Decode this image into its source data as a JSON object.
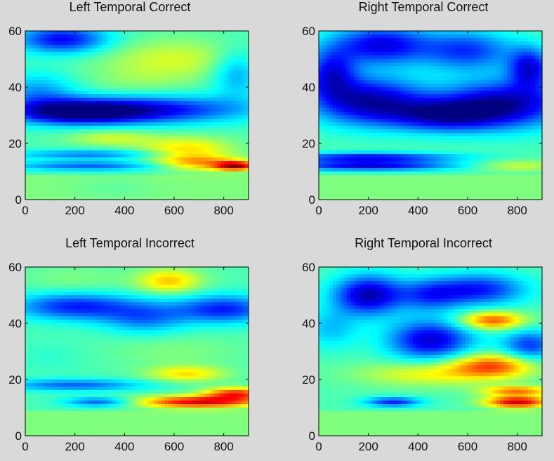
{
  "chart_data": [
    {
      "type": "heatmap",
      "title": "Left Temporal Correct",
      "xlim": [
        0,
        900
      ],
      "ylim": [
        0,
        60
      ],
      "xticks": [
        0,
        200,
        400,
        600,
        800
      ],
      "yticks": [
        0,
        20,
        40,
        60
      ],
      "colormap": "jet",
      "clim": [
        0,
        1
      ],
      "grid": false,
      "features": [
        {
          "x": 600,
          "y": 50,
          "value": 0.58,
          "sx": 200,
          "sy": 5
        },
        {
          "x": 150,
          "y": 57,
          "value": 0.12,
          "sx": 130,
          "sy": 3.5
        },
        {
          "x": 50,
          "y": 38,
          "value": 0.28,
          "sx": 110,
          "sy": 5
        },
        {
          "x": 500,
          "y": 32,
          "value": 0.12,
          "sx": 280,
          "sy": 3.5
        },
        {
          "x": 200,
          "y": 31,
          "value": 0.08,
          "sx": 180,
          "sy": 3
        },
        {
          "x": 450,
          "y": 42,
          "value": 0.5,
          "sx": 150,
          "sy": 4
        },
        {
          "x": 850,
          "y": 45,
          "value": 0.28,
          "sx": 70,
          "sy": 6
        },
        {
          "x": 350,
          "y": 22,
          "value": 0.58,
          "sx": 120,
          "sy": 2
        },
        {
          "x": 650,
          "y": 18,
          "value": 0.65,
          "sx": 130,
          "sy": 3
        },
        {
          "x": 250,
          "y": 16,
          "value": 0.25,
          "sx": 220,
          "sy": 1.2
        },
        {
          "x": 250,
          "y": 12,
          "value": 0.22,
          "sx": 230,
          "sy": 1.2
        },
        {
          "x": 850,
          "y": 12,
          "value": 0.9,
          "sx": 60,
          "sy": 1.2
        },
        {
          "x": 700,
          "y": 13,
          "value": 0.7,
          "sx": 120,
          "sy": 2
        },
        {
          "x": 350,
          "y": 4,
          "value": 0.42,
          "sx": 120,
          "sy": 3
        }
      ]
    },
    {
      "type": "heatmap",
      "title": "Right Temporal Correct",
      "xlim": [
        0,
        900
      ],
      "ylim": [
        0,
        60
      ],
      "xticks": [
        0,
        200,
        400,
        600,
        800
      ],
      "yticks": [
        0,
        20,
        40,
        60
      ],
      "colormap": "jet",
      "clim": [
        0,
        1
      ],
      "grid": false,
      "features": [
        {
          "x": 250,
          "y": 55,
          "value": 0.1,
          "sx": 140,
          "sy": 5
        },
        {
          "x": 600,
          "y": 53,
          "value": 0.18,
          "sx": 130,
          "sy": 5
        },
        {
          "x": 200,
          "y": 35,
          "value": 0.05,
          "sx": 160,
          "sy": 6
        },
        {
          "x": 750,
          "y": 34,
          "value": 0.05,
          "sx": 180,
          "sy": 6
        },
        {
          "x": 500,
          "y": 30,
          "value": 0.12,
          "sx": 150,
          "sy": 4
        },
        {
          "x": 450,
          "y": 42,
          "value": 0.45,
          "sx": 80,
          "sy": 4
        },
        {
          "x": 50,
          "y": 45,
          "value": 0.15,
          "sx": 70,
          "sy": 6
        },
        {
          "x": 850,
          "y": 47,
          "value": 0.12,
          "sx": 60,
          "sy": 5
        },
        {
          "x": 200,
          "y": 15,
          "value": 0.12,
          "sx": 250,
          "sy": 1.2
        },
        {
          "x": 200,
          "y": 12,
          "value": 0.1,
          "sx": 250,
          "sy": 1.2
        },
        {
          "x": 800,
          "y": 12,
          "value": 0.58,
          "sx": 130,
          "sy": 1.5
        }
      ]
    },
    {
      "type": "heatmap",
      "title": "Left Temporal Incorrect",
      "xlim": [
        0,
        900
      ],
      "ylim": [
        0,
        60
      ],
      "xticks": [
        0,
        200,
        400,
        600,
        800
      ],
      "yticks": [
        0,
        20,
        40,
        60
      ],
      "colormap": "jet",
      "clim": [
        0,
        1
      ],
      "grid": false,
      "features": [
        {
          "x": 580,
          "y": 55,
          "value": 0.68,
          "sx": 90,
          "sy": 3
        },
        {
          "x": 200,
          "y": 55,
          "value": 0.5,
          "sx": 150,
          "sy": 4
        },
        {
          "x": 200,
          "y": 46,
          "value": 0.15,
          "sx": 170,
          "sy": 3.5
        },
        {
          "x": 800,
          "y": 45,
          "value": 0.15,
          "sx": 140,
          "sy": 3.5
        },
        {
          "x": 480,
          "y": 42,
          "value": 0.25,
          "sx": 120,
          "sy": 4
        },
        {
          "x": 600,
          "y": 30,
          "value": 0.5,
          "sx": 180,
          "sy": 4
        },
        {
          "x": 650,
          "y": 22,
          "value": 0.65,
          "sx": 110,
          "sy": 2
        },
        {
          "x": 100,
          "y": 28,
          "value": 0.42,
          "sx": 100,
          "sy": 4
        },
        {
          "x": 200,
          "y": 18,
          "value": 0.22,
          "sx": 200,
          "sy": 1.5
        },
        {
          "x": 300,
          "y": 12,
          "value": 0.2,
          "sx": 100,
          "sy": 1.2
        },
        {
          "x": 700,
          "y": 12,
          "value": 0.9,
          "sx": 180,
          "sy": 1.5
        },
        {
          "x": 850,
          "y": 15,
          "value": 0.82,
          "sx": 90,
          "sy": 1.5
        }
      ]
    },
    {
      "type": "heatmap",
      "title": "Right Temporal Incorrect",
      "xlim": [
        0,
        900
      ],
      "ylim": [
        0,
        60
      ],
      "xticks": [
        0,
        200,
        400,
        600,
        800
      ],
      "yticks": [
        0,
        20,
        40,
        60
      ],
      "colormap": "jet",
      "clim": [
        0,
        1
      ],
      "grid": false,
      "features": [
        {
          "x": 200,
          "y": 50,
          "value": 0.05,
          "sx": 100,
          "sy": 5
        },
        {
          "x": 650,
          "y": 52,
          "value": 0.15,
          "sx": 130,
          "sy": 4
        },
        {
          "x": 450,
          "y": 50,
          "value": 0.22,
          "sx": 90,
          "sy": 4
        },
        {
          "x": 450,
          "y": 34,
          "value": 0.08,
          "sx": 120,
          "sy": 5
        },
        {
          "x": 700,
          "y": 41,
          "value": 0.8,
          "sx": 90,
          "sy": 2.2
        },
        {
          "x": 700,
          "y": 25,
          "value": 0.78,
          "sx": 120,
          "sy": 3
        },
        {
          "x": 450,
          "y": 22,
          "value": 0.62,
          "sx": 200,
          "sy": 3
        },
        {
          "x": 850,
          "y": 32,
          "value": 0.18,
          "sx": 80,
          "sy": 4
        },
        {
          "x": 50,
          "y": 38,
          "value": 0.32,
          "sx": 80,
          "sy": 5
        },
        {
          "x": 300,
          "y": 12,
          "value": 0.15,
          "sx": 80,
          "sy": 1.2
        },
        {
          "x": 800,
          "y": 12,
          "value": 0.92,
          "sx": 90,
          "sy": 1.5
        },
        {
          "x": 800,
          "y": 16,
          "value": 0.75,
          "sx": 100,
          "sy": 1.2
        }
      ]
    }
  ]
}
